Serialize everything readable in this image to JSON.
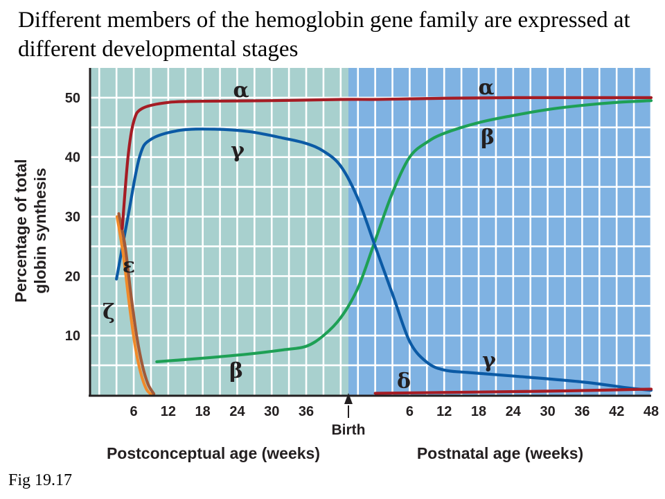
{
  "slide": {
    "title": "Different members of the hemoglobin gene family are expressed at different developmental stages",
    "figure_label": "Fig 19.17"
  },
  "chart_data": {
    "type": "line",
    "xlabel_left": "Postconceptual age (weeks)",
    "xlabel_right": "Postnatal age (weeks)",
    "ylabel": "Percentage of total globin synthesis",
    "birth_label": "Birth",
    "x_ticks_prenatal": [
      "6",
      "12",
      "18",
      "24",
      "30",
      "36"
    ],
    "x_ticks_postnatal": [
      "6",
      "12",
      "18",
      "24",
      "30",
      "36",
      "42",
      "48"
    ],
    "y_ticks": [
      "10",
      "20",
      "30",
      "40",
      "50"
    ],
    "ylim": [
      0,
      55
    ],
    "grid": true,
    "colors": {
      "prenatal_bg": "#a8d0ce",
      "postnatal_bg": "#7fb2e2",
      "grid": "#ffffff",
      "alpha": "#a51c24",
      "gamma": "#0b5aa5",
      "beta": "#1ea055",
      "epsilon": "#a05a3a",
      "zeta": "#f08a2a",
      "delta": "#a51c24"
    },
    "series": [
      {
        "name": "α",
        "key": "alpha",
        "label_positions": [
          "prenatal",
          "postnatal"
        ],
        "points": [
          [
            -2,
            28
          ],
          [
            -1,
            40
          ],
          [
            0,
            46
          ],
          [
            1.5,
            48.2
          ],
          [
            6,
            49.2
          ],
          [
            12,
            49.4
          ],
          [
            24,
            49.5
          ],
          [
            36,
            49.7
          ],
          [
            42,
            49.7
          ],
          [
            48,
            49.8
          ],
          [
            54,
            49.9
          ],
          [
            66,
            50
          ],
          [
            90,
            50
          ]
        ]
      },
      {
        "name": "γ",
        "key": "gamma",
        "label_positions": [
          "prenatal",
          "postnatal"
        ],
        "points": [
          [
            -3,
            19.5
          ],
          [
            -1,
            30
          ],
          [
            1,
            40
          ],
          [
            3,
            43
          ],
          [
            8,
            44.5
          ],
          [
            14,
            44.7
          ],
          [
            20,
            44.3
          ],
          [
            26,
            43.2
          ],
          [
            30,
            42.3
          ],
          [
            33,
            41
          ],
          [
            36,
            38.5
          ],
          [
            39,
            33
          ],
          [
            42,
            25
          ],
          [
            45,
            17
          ],
          [
            48,
            9
          ],
          [
            51,
            5.5
          ],
          [
            54,
            4.2
          ],
          [
            58,
            3.8
          ],
          [
            66,
            3.2
          ],
          [
            78,
            2.2
          ],
          [
            86,
            1.2
          ],
          [
            90,
            0.8
          ]
        ]
      },
      {
        "name": "β",
        "key": "beta",
        "label_positions": [
          "prenatal",
          "postnatal"
        ],
        "points": [
          [
            4,
            5.6
          ],
          [
            12,
            6.2
          ],
          [
            20,
            6.9
          ],
          [
            26,
            7.6
          ],
          [
            30,
            8.2
          ],
          [
            33,
            10
          ],
          [
            36,
            13
          ],
          [
            39,
            18
          ],
          [
            42,
            26
          ],
          [
            45,
            34
          ],
          [
            48,
            40
          ],
          [
            51,
            42.5
          ],
          [
            54,
            44
          ],
          [
            60,
            45.8
          ],
          [
            66,
            47
          ],
          [
            72,
            48
          ],
          [
            78,
            48.7
          ],
          [
            84,
            49.2
          ],
          [
            90,
            49.5
          ]
        ]
      },
      {
        "name": "ε",
        "key": "epsilon",
        "label_positions": [
          "prenatal"
        ],
        "points": [
          [
            -2.6,
            30.5
          ],
          [
            -1.5,
            25
          ],
          [
            -0.5,
            17
          ],
          [
            0.5,
            10
          ],
          [
            1.5,
            5
          ],
          [
            2.5,
            1.8
          ],
          [
            3.5,
            0.2
          ]
        ]
      },
      {
        "name": "ζ",
        "key": "zeta",
        "label_positions": [
          "prenatal"
        ],
        "points": [
          [
            -2.9,
            30
          ],
          [
            -1.8,
            23.5
          ],
          [
            -0.8,
            15.5
          ],
          [
            0.2,
            8.5
          ],
          [
            1.2,
            3.8
          ],
          [
            2.2,
            1
          ],
          [
            3.2,
            0
          ]
        ]
      },
      {
        "name": "δ",
        "key": "delta",
        "label_positions": [
          "postnatal"
        ],
        "points": [
          [
            42,
            0.3
          ],
          [
            60,
            0.5
          ],
          [
            75,
            0.7
          ],
          [
            90,
            1
          ]
        ]
      }
    ]
  }
}
